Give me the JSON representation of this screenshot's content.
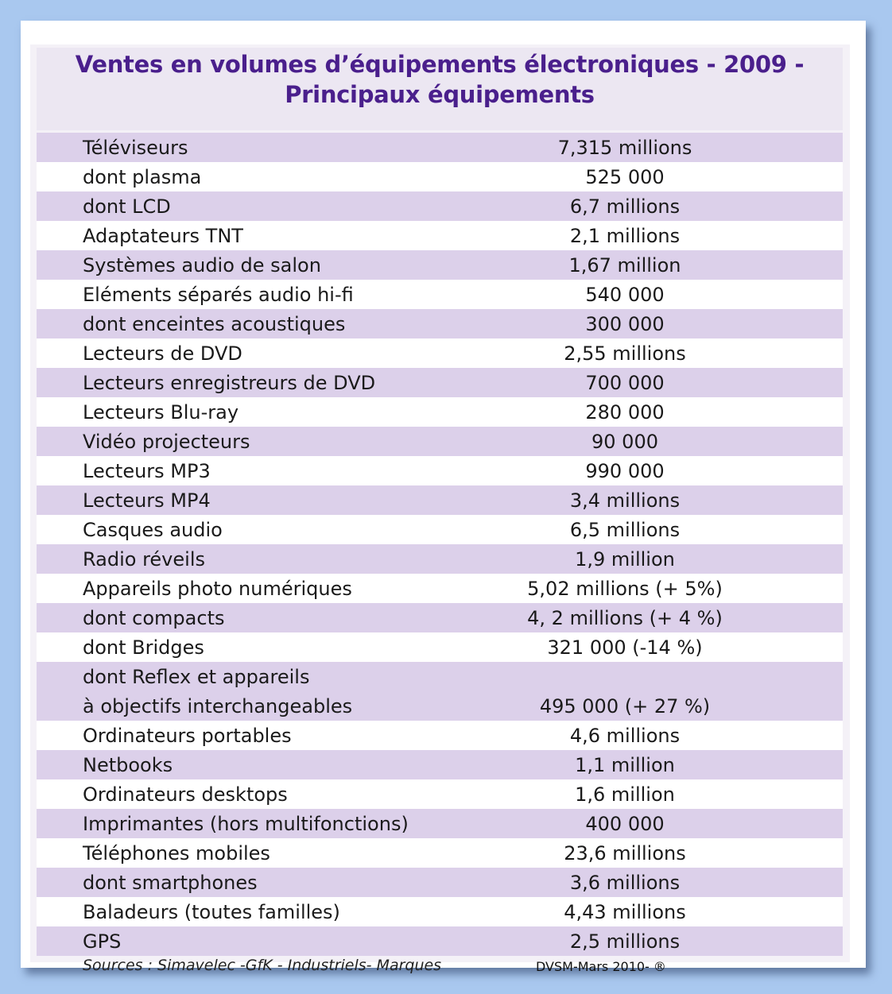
{
  "title_line1": "Ventes en volumes d’équipements électroniques - 2009 -",
  "title_line2": "Principaux équipements",
  "rows": [
    {
      "label": "Téléviseurs",
      "value": "7,315 millions"
    },
    {
      "label": "dont plasma",
      "value": "525 000"
    },
    {
      "label": "dont LCD",
      "value": "6,7 millions"
    },
    {
      "label": "Adaptateurs TNT",
      "value": "2,1 millions"
    },
    {
      "label": "Systèmes audio de salon",
      "value": "1,67 million"
    },
    {
      "label": "Eléments séparés audio hi-fi",
      "value": "540 000"
    },
    {
      "label": "dont enceintes acoustiques",
      "value": "300 000"
    },
    {
      "label": "Lecteurs de DVD",
      "value": "2,55 millions"
    },
    {
      "label": "Lecteurs enregistreurs de DVD",
      "value": "700 000"
    },
    {
      "label": "Lecteurs Blu-ray",
      "value": "280 000"
    },
    {
      "label": "Vidéo projecteurs",
      "value": "90 000"
    },
    {
      "label": "Lecteurs MP3",
      "value": "990 000"
    },
    {
      "label": "Lecteurs MP4",
      "value": "3,4 millions"
    },
    {
      "label": "Casques audio",
      "value": "6,5 millions"
    },
    {
      "label": "Radio réveils",
      "value": "1,9 million"
    },
    {
      "label": "Appareils photo numériques",
      "value": "5,02 millions (+ 5%)"
    },
    {
      "label": "dont compacts",
      "value": "4, 2 millions (+ 4 %)"
    },
    {
      "label": "dont Bridges",
      "value": "321 000 (-14 %)"
    },
    {
      "label": "dont Reflex et appareils",
      "value": ""
    },
    {
      "label": "à objectifs interchangeables",
      "value": "495 000 (+ 27 %)"
    },
    {
      "label": "Ordinateurs portables",
      "value": "4,6 millions"
    },
    {
      "label": "Netbooks",
      "value": "1,1 million"
    },
    {
      "label": "Ordinateurs desktops",
      "value": "1,6 million"
    },
    {
      "label": "Imprimantes (hors multifonctions)",
      "value": "400 000"
    },
    {
      "label": "Téléphones mobiles",
      "value": "23,6 millions"
    },
    {
      "label": "dont smartphones",
      "value": "3,6 millions"
    },
    {
      "label": "Baladeurs (toutes familles)",
      "value": "4,43 millions"
    },
    {
      "label": "GPS",
      "value": "2,5 millions"
    }
  ],
  "row_shading": [
    "alt",
    "plain",
    "alt",
    "plain",
    "alt",
    "plain",
    "alt",
    "plain",
    "alt",
    "plain",
    "alt",
    "plain",
    "alt",
    "plain",
    "alt",
    "plain",
    "alt",
    "plain",
    "alt",
    "alt",
    "plain",
    "alt",
    "plain",
    "alt",
    "plain",
    "alt",
    "plain",
    "alt"
  ],
  "sources": "Sources : Simavelec -GfK - Industriels- Marques",
  "credit": "DVSM-Mars 2010- ®",
  "colors": {
    "title": "#4a1f8c",
    "row_alt": "#dcd0ea",
    "row_plain": "#ffffff",
    "background": "#a9c8ef"
  }
}
